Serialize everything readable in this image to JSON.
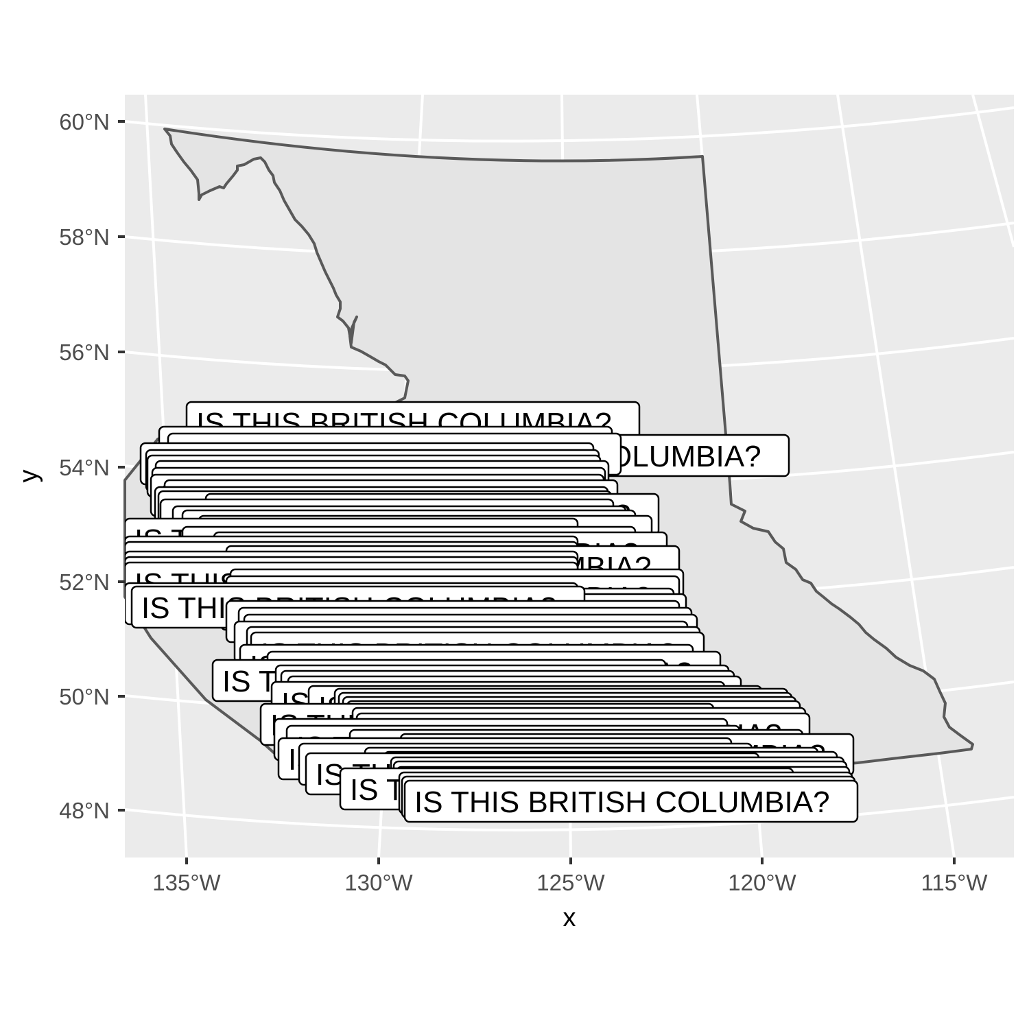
{
  "colors": {
    "panel_background": "#ebebeb",
    "gridline": "#ffffff",
    "province_fill": "#e4e4e4",
    "province_outline": "#595959",
    "tick_text": "#4d4d4d",
    "label_fill": "#ffffff",
    "label_border": "#000000"
  },
  "map": {
    "region": "British Columbia",
    "projection": "conic (lines of latitude curved)",
    "label_text": "IS THIS BRITISH COLUMBIA?",
    "label_style": "white rounded boxes with black border, drawn once per outline vertex, heavily overlapping across southwestern BC",
    "x_axis": {
      "title": "x",
      "ticks": [
        "135°W",
        "130°W",
        "125°W",
        "120°W",
        "115°W"
      ]
    },
    "y_axis": {
      "title": "y",
      "ticks": [
        "60°N",
        "58°N",
        "56°N",
        "54°N",
        "52°N",
        "50°N",
        "48°N"
      ]
    },
    "grid": true,
    "lon_range": [
      -136.5,
      -113.5
    ],
    "lat_range": [
      47,
      60.5
    ]
  }
}
